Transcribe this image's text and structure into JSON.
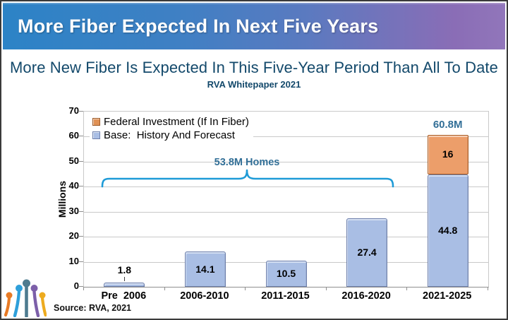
{
  "header": {
    "title": "More Fiber Expected In Next Five Years",
    "gradient_left": "#2c83c6",
    "gradient_right": "#9176ba",
    "text_color": "#ffffff"
  },
  "chart": {
    "title": "More New Fiber Is Expected In This Five-Year Period Than All To Date",
    "subtitle": "RVA Whitepaper 2021",
    "title_color": "#13496b"
  },
  "legend": {
    "items": [
      {
        "label": "Federal Investment (If In Fiber)",
        "color": "#e09155",
        "border": "#9c5a28"
      },
      {
        "label": "Base:  History And Forecast",
        "color": "#a9bee4",
        "border": "#6e80ac"
      }
    ]
  },
  "axis": {
    "y_label": "Millions"
  },
  "annotation": {
    "bracket_label": "53.8M Homes",
    "text_color": "#326f97",
    "bracket_color": "#1e9bd7"
  },
  "source": {
    "text": "Source: RVA, 2021"
  },
  "logo": {
    "name": "fiber-strands-logo",
    "colors": [
      "#e87a24",
      "#2e9fda",
      "#4e7b8f",
      "#7c5fa9",
      "#edab1f"
    ]
  },
  "chart_data": {
    "type": "bar",
    "stacked": true,
    "title": "More New Fiber Is Expected In This Five-Year Period Than All To Date",
    "subtitle": "RVA Whitepaper 2021",
    "categories": [
      "Pre  2006",
      "2006-2010",
      "2011-2015",
      "2016-2020",
      "2021-2025"
    ],
    "series": [
      {
        "name": "Base:  History And Forecast",
        "values": [
          1.8,
          14.1,
          10.5,
          27.4,
          44.8
        ],
        "labels": [
          "1.8",
          "14.1",
          "10.5",
          "27.4",
          "44.8"
        ],
        "color": "#a9bee4",
        "border": "#6e80ac"
      },
      {
        "name": "Federal Investment (If In Fiber)",
        "values": [
          0,
          0,
          0,
          0,
          16
        ],
        "labels": [
          "",
          "",
          "",
          "",
          "16"
        ],
        "color": "#ec9e6a",
        "border": "#aa5d25"
      }
    ],
    "total_label": {
      "index": 4,
      "text": "60.8M"
    },
    "annotation": {
      "text": "53.8M Homes",
      "span_categories": [
        0,
        3
      ],
      "y_value": 43
    },
    "xlabel": "",
    "ylabel": "Millions",
    "ylim": [
      0,
      70
    ],
    "y_ticks": [
      0,
      10,
      20,
      30,
      40,
      50,
      60,
      70
    ],
    "grid": true,
    "legend_position": "top-left"
  }
}
